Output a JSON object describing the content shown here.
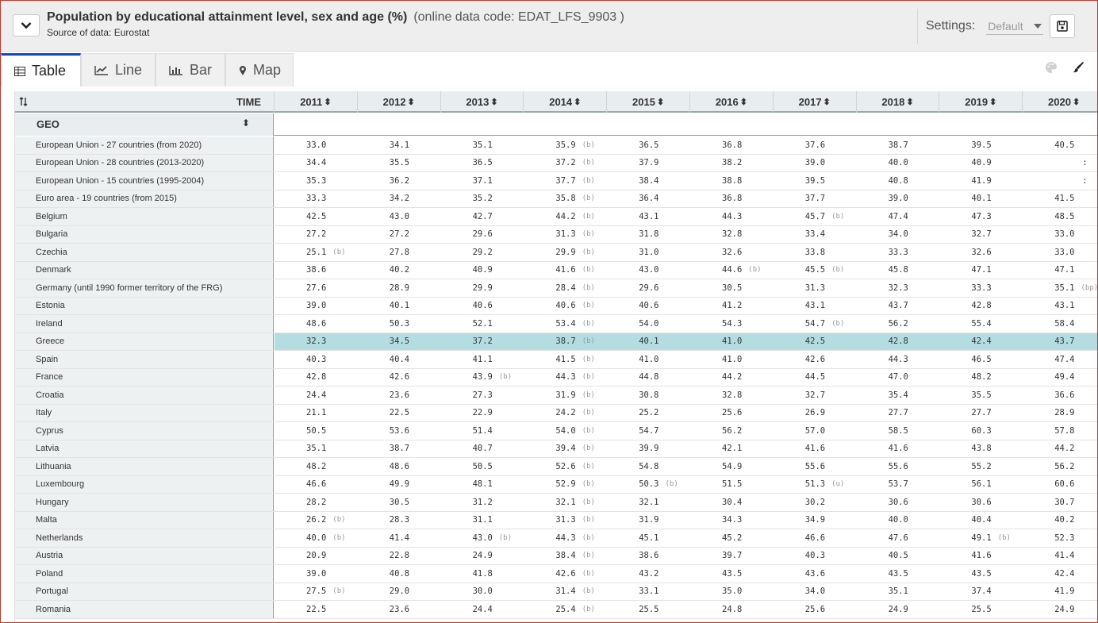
{
  "header": {
    "title": "Population by educational attainment level, sex and age (%)",
    "code": "(online data code: EDAT_LFS_9903 )",
    "source_label": "Source of data:",
    "source_value": "Eurostat",
    "settings_label": "Settings:",
    "settings_value": "Default"
  },
  "tabs": [
    {
      "label": "Table",
      "icon": "table-icon",
      "active": true
    },
    {
      "label": "Line",
      "icon": "line-chart-icon",
      "active": false
    },
    {
      "label": "Bar",
      "icon": "bar-chart-icon",
      "active": false
    },
    {
      "label": "Map",
      "icon": "map-pin-icon",
      "active": false
    }
  ],
  "table": {
    "time_label": "TIME",
    "geo_label": "GEO",
    "years": [
      "2011",
      "2012",
      "2013",
      "2014",
      "2015",
      "2016",
      "2017",
      "2018",
      "2019",
      "2020"
    ],
    "highlight_row": "Greece",
    "highlight_color": "#b3dde0",
    "rows": [
      {
        "geo": "European Union - 27 countries (from 2020)",
        "v": [
          [
            "33.0",
            ""
          ],
          [
            "34.1",
            ""
          ],
          [
            "35.1",
            ""
          ],
          [
            "35.9",
            "(b)"
          ],
          [
            "36.5",
            ""
          ],
          [
            "36.8",
            ""
          ],
          [
            "37.6",
            ""
          ],
          [
            "38.7",
            ""
          ],
          [
            "39.5",
            ""
          ],
          [
            "40.5",
            ""
          ]
        ]
      },
      {
        "geo": "European Union - 28 countries (2013-2020)",
        "v": [
          [
            "34.4",
            ""
          ],
          [
            "35.5",
            ""
          ],
          [
            "36.5",
            ""
          ],
          [
            "37.2",
            "(b)"
          ],
          [
            "37.9",
            ""
          ],
          [
            "38.2",
            ""
          ],
          [
            "39.0",
            ""
          ],
          [
            "40.0",
            ""
          ],
          [
            "40.9",
            ""
          ],
          [
            ":",
            ""
          ]
        ]
      },
      {
        "geo": "European Union - 15 countries (1995-2004)",
        "v": [
          [
            "35.3",
            ""
          ],
          [
            "36.2",
            ""
          ],
          [
            "37.1",
            ""
          ],
          [
            "37.7",
            "(b)"
          ],
          [
            "38.4",
            ""
          ],
          [
            "38.8",
            ""
          ],
          [
            "39.5",
            ""
          ],
          [
            "40.8",
            ""
          ],
          [
            "41.9",
            ""
          ],
          [
            ":",
            ""
          ]
        ]
      },
      {
        "geo": "Euro area - 19 countries (from 2015)",
        "v": [
          [
            "33.3",
            ""
          ],
          [
            "34.2",
            ""
          ],
          [
            "35.2",
            ""
          ],
          [
            "35.8",
            "(b)"
          ],
          [
            "36.4",
            ""
          ],
          [
            "36.8",
            ""
          ],
          [
            "37.7",
            ""
          ],
          [
            "39.0",
            ""
          ],
          [
            "40.1",
            ""
          ],
          [
            "41.5",
            ""
          ]
        ]
      },
      {
        "geo": "Belgium",
        "v": [
          [
            "42.5",
            ""
          ],
          [
            "43.0",
            ""
          ],
          [
            "42.7",
            ""
          ],
          [
            "44.2",
            "(b)"
          ],
          [
            "43.1",
            ""
          ],
          [
            "44.3",
            ""
          ],
          [
            "45.7",
            "(b)"
          ],
          [
            "47.4",
            ""
          ],
          [
            "47.3",
            ""
          ],
          [
            "48.5",
            ""
          ]
        ]
      },
      {
        "geo": "Bulgaria",
        "v": [
          [
            "27.2",
            ""
          ],
          [
            "27.2",
            ""
          ],
          [
            "29.6",
            ""
          ],
          [
            "31.3",
            "(b)"
          ],
          [
            "31.8",
            ""
          ],
          [
            "32.8",
            ""
          ],
          [
            "33.4",
            ""
          ],
          [
            "34.0",
            ""
          ],
          [
            "32.7",
            ""
          ],
          [
            "33.0",
            ""
          ]
        ]
      },
      {
        "geo": "Czechia",
        "v": [
          [
            "25.1",
            "(b)"
          ],
          [
            "27.8",
            ""
          ],
          [
            "29.2",
            ""
          ],
          [
            "29.9",
            "(b)"
          ],
          [
            "31.0",
            ""
          ],
          [
            "32.6",
            ""
          ],
          [
            "33.8",
            ""
          ],
          [
            "33.3",
            ""
          ],
          [
            "32.6",
            ""
          ],
          [
            "33.0",
            ""
          ]
        ]
      },
      {
        "geo": "Denmark",
        "v": [
          [
            "38.6",
            ""
          ],
          [
            "40.2",
            ""
          ],
          [
            "40.9",
            ""
          ],
          [
            "41.6",
            "(b)"
          ],
          [
            "43.0",
            ""
          ],
          [
            "44.6",
            "(b)"
          ],
          [
            "45.5",
            "(b)"
          ],
          [
            "45.8",
            ""
          ],
          [
            "47.1",
            ""
          ],
          [
            "47.1",
            ""
          ]
        ]
      },
      {
        "geo": "Germany (until 1990 former territory of the FRG)",
        "v": [
          [
            "27.6",
            ""
          ],
          [
            "28.9",
            ""
          ],
          [
            "29.9",
            ""
          ],
          [
            "28.4",
            "(b)"
          ],
          [
            "29.6",
            ""
          ],
          [
            "30.5",
            ""
          ],
          [
            "31.3",
            ""
          ],
          [
            "32.3",
            ""
          ],
          [
            "33.3",
            ""
          ],
          [
            "35.1",
            "(bp)"
          ]
        ]
      },
      {
        "geo": "Estonia",
        "v": [
          [
            "39.0",
            ""
          ],
          [
            "40.1",
            ""
          ],
          [
            "40.6",
            ""
          ],
          [
            "40.6",
            "(b)"
          ],
          [
            "40.6",
            ""
          ],
          [
            "41.2",
            ""
          ],
          [
            "43.1",
            ""
          ],
          [
            "43.7",
            ""
          ],
          [
            "42.8",
            ""
          ],
          [
            "43.1",
            ""
          ]
        ]
      },
      {
        "geo": "Ireland",
        "v": [
          [
            "48.6",
            ""
          ],
          [
            "50.3",
            ""
          ],
          [
            "52.1",
            ""
          ],
          [
            "53.4",
            "(b)"
          ],
          [
            "54.0",
            ""
          ],
          [
            "54.3",
            ""
          ],
          [
            "54.7",
            "(b)"
          ],
          [
            "56.2",
            ""
          ],
          [
            "55.4",
            ""
          ],
          [
            "58.4",
            ""
          ]
        ]
      },
      {
        "geo": "Greece",
        "v": [
          [
            "32.3",
            ""
          ],
          [
            "34.5",
            ""
          ],
          [
            "37.2",
            ""
          ],
          [
            "38.7",
            "(b)"
          ],
          [
            "40.1",
            ""
          ],
          [
            "41.0",
            ""
          ],
          [
            "42.5",
            ""
          ],
          [
            "42.8",
            ""
          ],
          [
            "42.4",
            ""
          ],
          [
            "43.7",
            ""
          ]
        ]
      },
      {
        "geo": "Spain",
        "v": [
          [
            "40.3",
            ""
          ],
          [
            "40.4",
            ""
          ],
          [
            "41.1",
            ""
          ],
          [
            "41.5",
            "(b)"
          ],
          [
            "41.0",
            ""
          ],
          [
            "41.0",
            ""
          ],
          [
            "42.6",
            ""
          ],
          [
            "44.3",
            ""
          ],
          [
            "46.5",
            ""
          ],
          [
            "47.4",
            ""
          ]
        ]
      },
      {
        "geo": "France",
        "v": [
          [
            "42.8",
            ""
          ],
          [
            "42.6",
            ""
          ],
          [
            "43.9",
            "(b)"
          ],
          [
            "44.3",
            "(b)"
          ],
          [
            "44.8",
            ""
          ],
          [
            "44.2",
            ""
          ],
          [
            "44.5",
            ""
          ],
          [
            "47.0",
            ""
          ],
          [
            "48.2",
            ""
          ],
          [
            "49.4",
            ""
          ]
        ]
      },
      {
        "geo": "Croatia",
        "v": [
          [
            "24.4",
            ""
          ],
          [
            "23.6",
            ""
          ],
          [
            "27.3",
            ""
          ],
          [
            "31.9",
            "(b)"
          ],
          [
            "30.8",
            ""
          ],
          [
            "32.8",
            ""
          ],
          [
            "32.7",
            ""
          ],
          [
            "35.4",
            ""
          ],
          [
            "35.5",
            ""
          ],
          [
            "36.6",
            ""
          ]
        ]
      },
      {
        "geo": "Italy",
        "v": [
          [
            "21.1",
            ""
          ],
          [
            "22.5",
            ""
          ],
          [
            "22.9",
            ""
          ],
          [
            "24.2",
            "(b)"
          ],
          [
            "25.2",
            ""
          ],
          [
            "25.6",
            ""
          ],
          [
            "26.9",
            ""
          ],
          [
            "27.7",
            ""
          ],
          [
            "27.7",
            ""
          ],
          [
            "28.9",
            ""
          ]
        ]
      },
      {
        "geo": "Cyprus",
        "v": [
          [
            "50.5",
            ""
          ],
          [
            "53.6",
            ""
          ],
          [
            "51.4",
            ""
          ],
          [
            "54.0",
            "(b)"
          ],
          [
            "54.7",
            ""
          ],
          [
            "56.2",
            ""
          ],
          [
            "57.0",
            ""
          ],
          [
            "58.5",
            ""
          ],
          [
            "60.3",
            ""
          ],
          [
            "57.8",
            ""
          ]
        ]
      },
      {
        "geo": "Latvia",
        "v": [
          [
            "35.1",
            ""
          ],
          [
            "38.7",
            ""
          ],
          [
            "40.7",
            ""
          ],
          [
            "39.4",
            "(b)"
          ],
          [
            "39.9",
            ""
          ],
          [
            "42.1",
            ""
          ],
          [
            "41.6",
            ""
          ],
          [
            "41.6",
            ""
          ],
          [
            "43.8",
            ""
          ],
          [
            "44.2",
            ""
          ]
        ]
      },
      {
        "geo": "Lithuania",
        "v": [
          [
            "48.2",
            ""
          ],
          [
            "48.6",
            ""
          ],
          [
            "50.5",
            ""
          ],
          [
            "52.6",
            "(b)"
          ],
          [
            "54.8",
            ""
          ],
          [
            "54.9",
            ""
          ],
          [
            "55.6",
            ""
          ],
          [
            "55.6",
            ""
          ],
          [
            "55.2",
            ""
          ],
          [
            "56.2",
            ""
          ]
        ]
      },
      {
        "geo": "Luxembourg",
        "v": [
          [
            "46.6",
            ""
          ],
          [
            "49.9",
            ""
          ],
          [
            "48.1",
            ""
          ],
          [
            "52.9",
            "(b)"
          ],
          [
            "50.3",
            "(b)"
          ],
          [
            "51.5",
            ""
          ],
          [
            "51.3",
            "(u)"
          ],
          [
            "53.7",
            ""
          ],
          [
            "56.1",
            ""
          ],
          [
            "60.6",
            ""
          ]
        ]
      },
      {
        "geo": "Hungary",
        "v": [
          [
            "28.2",
            ""
          ],
          [
            "30.5",
            ""
          ],
          [
            "31.2",
            ""
          ],
          [
            "32.1",
            "(b)"
          ],
          [
            "32.1",
            ""
          ],
          [
            "30.4",
            ""
          ],
          [
            "30.2",
            ""
          ],
          [
            "30.6",
            ""
          ],
          [
            "30.6",
            ""
          ],
          [
            "30.7",
            ""
          ]
        ]
      },
      {
        "geo": "Malta",
        "v": [
          [
            "26.2",
            "(b)"
          ],
          [
            "28.3",
            ""
          ],
          [
            "31.1",
            ""
          ],
          [
            "31.3",
            "(b)"
          ],
          [
            "31.9",
            ""
          ],
          [
            "34.3",
            ""
          ],
          [
            "34.9",
            ""
          ],
          [
            "40.0",
            ""
          ],
          [
            "40.4",
            ""
          ],
          [
            "40.2",
            ""
          ]
        ]
      },
      {
        "geo": "Netherlands",
        "v": [
          [
            "40.0",
            "(b)"
          ],
          [
            "41.4",
            ""
          ],
          [
            "43.0",
            "(b)"
          ],
          [
            "44.3",
            "(b)"
          ],
          [
            "45.1",
            ""
          ],
          [
            "45.2",
            ""
          ],
          [
            "46.6",
            ""
          ],
          [
            "47.6",
            ""
          ],
          [
            "49.1",
            "(b)"
          ],
          [
            "52.3",
            ""
          ]
        ]
      },
      {
        "geo": "Austria",
        "v": [
          [
            "20.9",
            ""
          ],
          [
            "22.8",
            ""
          ],
          [
            "24.9",
            ""
          ],
          [
            "38.4",
            "(b)"
          ],
          [
            "38.6",
            ""
          ],
          [
            "39.7",
            ""
          ],
          [
            "40.3",
            ""
          ],
          [
            "40.5",
            ""
          ],
          [
            "41.6",
            ""
          ],
          [
            "41.4",
            ""
          ]
        ]
      },
      {
        "geo": "Poland",
        "v": [
          [
            "39.0",
            ""
          ],
          [
            "40.8",
            ""
          ],
          [
            "41.8",
            ""
          ],
          [
            "42.6",
            "(b)"
          ],
          [
            "43.2",
            ""
          ],
          [
            "43.5",
            ""
          ],
          [
            "43.6",
            ""
          ],
          [
            "43.5",
            ""
          ],
          [
            "43.5",
            ""
          ],
          [
            "42.4",
            ""
          ]
        ]
      },
      {
        "geo": "Portugal",
        "v": [
          [
            "27.5",
            "(b)"
          ],
          [
            "29.0",
            ""
          ],
          [
            "30.0",
            ""
          ],
          [
            "31.4",
            "(b)"
          ],
          [
            "33.1",
            ""
          ],
          [
            "35.0",
            ""
          ],
          [
            "34.0",
            ""
          ],
          [
            "35.1",
            ""
          ],
          [
            "37.4",
            ""
          ],
          [
            "41.9",
            ""
          ]
        ]
      },
      {
        "geo": "Romania",
        "v": [
          [
            "22.5",
            ""
          ],
          [
            "23.6",
            ""
          ],
          [
            "24.4",
            ""
          ],
          [
            "25.4",
            "(b)"
          ],
          [
            "25.5",
            ""
          ],
          [
            "24.8",
            ""
          ],
          [
            "25.6",
            ""
          ],
          [
            "24.9",
            ""
          ],
          [
            "25.5",
            ""
          ],
          [
            "24.9",
            ""
          ]
        ]
      }
    ]
  }
}
